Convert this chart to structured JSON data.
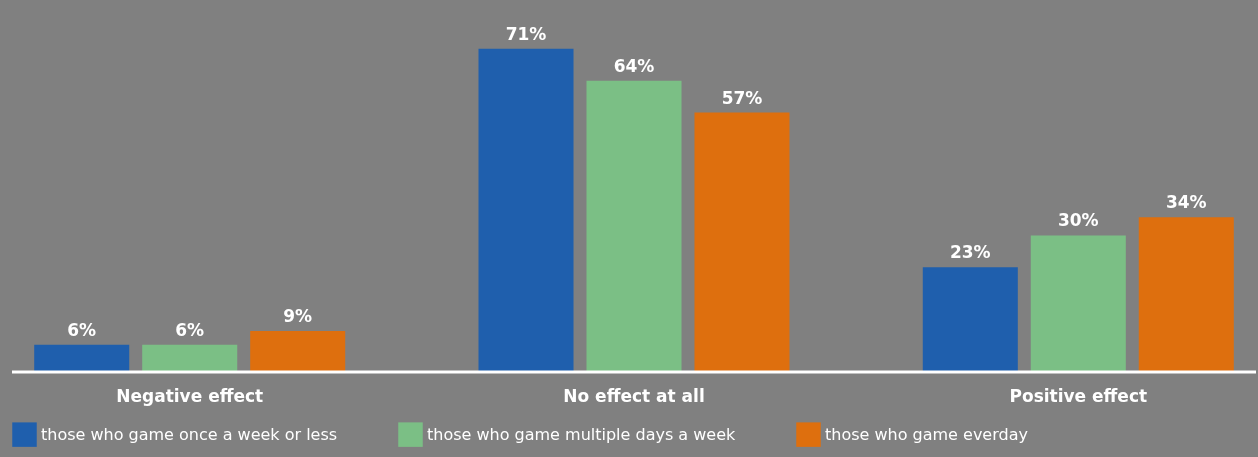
{
  "chart_data": {
    "type": "bar",
    "categories": [
      "Negative effect",
      "No effect at all",
      "Positive effect"
    ],
    "series": [
      {
        "name": "those who game once a week or less",
        "color": "#1f5fad",
        "values": [
          6,
          71,
          23
        ],
        "value_labels": [
          "6%",
          "71%",
          "23%"
        ]
      },
      {
        "name": "those who game multiple days a week",
        "color": "#7bbf85",
        "values": [
          6,
          64,
          30
        ],
        "value_labels": [
          "6%",
          "64%",
          "30%"
        ]
      },
      {
        "name": "those who game everday",
        "color": "#de6f0e",
        "values": [
          9,
          57,
          34
        ],
        "value_labels": [
          "9%",
          "57%",
          "34%"
        ]
      }
    ],
    "legend": "bottom",
    "grid": false
  }
}
